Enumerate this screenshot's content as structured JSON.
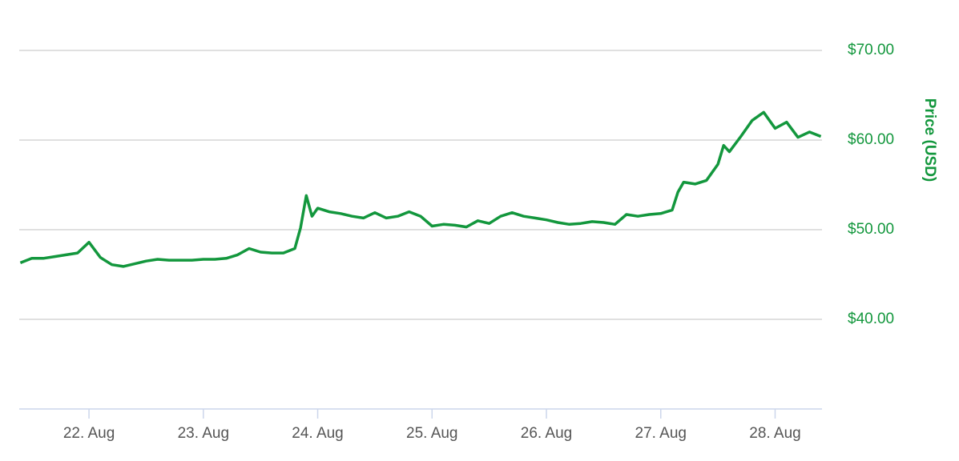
{
  "chart_data": {
    "type": "line",
    "y_axis_title": "Price (USD)",
    "series": [
      {
        "name": "Price",
        "color": "#13973d",
        "x": [
          21.4,
          21.5,
          21.6,
          21.7,
          21.8,
          21.9,
          22.0,
          22.1,
          22.2,
          22.3,
          22.4,
          22.5,
          22.6,
          22.7,
          22.8,
          22.9,
          23.0,
          23.1,
          23.2,
          23.3,
          23.4,
          23.5,
          23.6,
          23.7,
          23.8,
          23.85,
          23.9,
          23.95,
          24.0,
          24.1,
          24.2,
          24.3,
          24.4,
          24.5,
          24.6,
          24.7,
          24.8,
          24.9,
          25.0,
          25.1,
          25.2,
          25.3,
          25.4,
          25.5,
          25.6,
          25.7,
          25.8,
          25.9,
          26.0,
          26.1,
          26.2,
          26.3,
          26.4,
          26.5,
          26.6,
          26.7,
          26.8,
          26.9,
          27.0,
          27.1,
          27.15,
          27.2,
          27.3,
          27.4,
          27.5,
          27.55,
          27.6,
          27.7,
          27.8,
          27.9,
          28.0,
          28.1,
          28.2,
          28.3,
          28.4
        ],
        "values": [
          46.3,
          46.8,
          46.8,
          47.0,
          47.2,
          47.4,
          48.6,
          46.9,
          46.1,
          45.9,
          46.2,
          46.5,
          46.7,
          46.6,
          46.6,
          46.6,
          46.7,
          46.7,
          46.8,
          47.2,
          47.9,
          47.5,
          47.4,
          47.4,
          47.9,
          50.2,
          53.8,
          51.5,
          52.4,
          52.0,
          51.8,
          51.5,
          51.3,
          51.9,
          51.3,
          51.5,
          52.0,
          51.5,
          50.4,
          50.6,
          50.5,
          50.3,
          51.0,
          50.7,
          51.5,
          51.9,
          51.5,
          51.3,
          51.1,
          50.8,
          50.6,
          50.7,
          50.9,
          50.8,
          50.6,
          51.7,
          51.5,
          51.7,
          51.8,
          52.2,
          54.2,
          55.3,
          55.1,
          55.5,
          57.3,
          59.4,
          58.7,
          60.4,
          62.2,
          63.1,
          61.3,
          62.0,
          60.3,
          60.9,
          60.4
        ]
      }
    ],
    "xlim": [
      21.39,
      28.41
    ],
    "xticks": [
      {
        "value": 22,
        "label": "22. Aug"
      },
      {
        "value": 23,
        "label": "23. Aug"
      },
      {
        "value": 24,
        "label": "24. Aug"
      },
      {
        "value": 25,
        "label": "25. Aug"
      },
      {
        "value": 26,
        "label": "26. Aug"
      },
      {
        "value": 27,
        "label": "27. Aug"
      },
      {
        "value": 28,
        "label": "28. Aug"
      }
    ],
    "ylim": [
      30,
      70
    ],
    "yticks": [
      {
        "value": 40,
        "label": "$40.00"
      },
      {
        "value": 50,
        "label": "$50.00"
      },
      {
        "value": 60,
        "label": "$60.00"
      },
      {
        "value": 70,
        "label": "$70.00"
      }
    ],
    "grid": true,
    "axis_color": "#13973d"
  }
}
